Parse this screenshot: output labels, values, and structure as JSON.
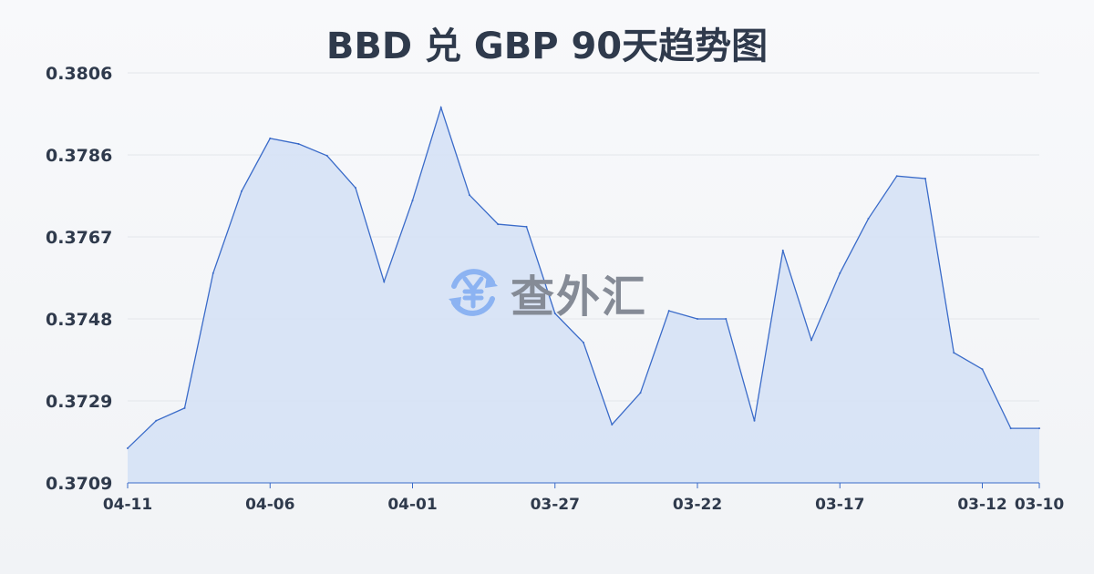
{
  "chart_data": {
    "type": "area",
    "title": "BBD 兑 GBP 90天趋势图",
    "xlabel": "",
    "ylabel": "",
    "x": [
      "04-11",
      "04-10",
      "04-09",
      "04-08",
      "04-07",
      "04-06",
      "04-05",
      "04-04",
      "04-03",
      "04-02",
      "04-01",
      "03-31",
      "03-30",
      "03-29",
      "03-28",
      "03-27",
      "03-26",
      "03-25",
      "03-24",
      "03-23",
      "03-22",
      "03-21",
      "03-20",
      "03-19",
      "03-18",
      "03-17",
      "03-16",
      "03-15",
      "03-14",
      "03-13",
      "03-12",
      "03-11",
      "03-10"
    ],
    "values": [
      0.37172,
      0.37237,
      0.37267,
      0.37586,
      0.3778,
      0.37905,
      0.37892,
      0.37864,
      0.37788,
      0.37566,
      0.37758,
      0.37978,
      0.37771,
      0.37702,
      0.37696,
      0.37491,
      0.37422,
      0.37228,
      0.37303,
      0.37497,
      0.37478,
      0.37478,
      0.37237,
      0.3764,
      0.37428,
      0.37586,
      0.37715,
      0.37816,
      0.3781,
      0.37398,
      0.37359,
      0.37219,
      0.37219
    ],
    "ylim": [
      0.3709,
      0.3806
    ],
    "yticks": [
      "0.3806",
      "0.3786",
      "0.3767",
      "0.3748",
      "0.3729",
      "0.3709"
    ],
    "xticks": [
      "04-11",
      "04-06",
      "04-01",
      "03-27",
      "03-22",
      "03-17",
      "03-12",
      "03-10"
    ],
    "grid": true,
    "colors": {
      "line": "#3a6bc9",
      "fill": "#d3e0f6",
      "grid": "#e3e6ea"
    }
  },
  "watermark": {
    "text": "查外汇",
    "icon": "yen-exchange-icon"
  }
}
